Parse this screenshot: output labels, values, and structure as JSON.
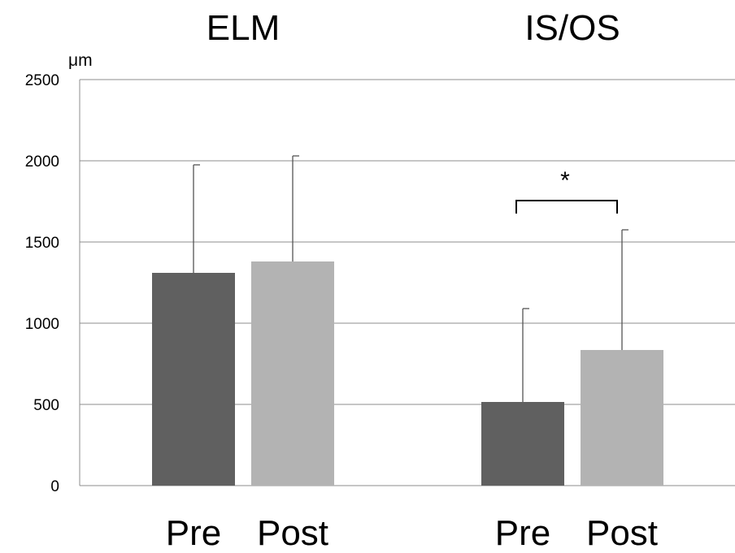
{
  "chart_data": {
    "type": "bar",
    "yunit": "μm",
    "ylim": [
      0,
      2500
    ],
    "yticks": [
      0,
      500,
      1000,
      1500,
      2000,
      2500
    ],
    "grid": true,
    "groups": [
      {
        "title": "ELM",
        "bars": [
          {
            "label": "Pre",
            "value": 1310,
            "error": 665,
            "color": "#606060"
          },
          {
            "label": "Post",
            "value": 1380,
            "error": 650,
            "color": "#b3b3b3"
          }
        ]
      },
      {
        "title": "IS/OS",
        "bars": [
          {
            "label": "Pre",
            "value": 515,
            "error": 575,
            "color": "#606060"
          },
          {
            "label": "Post",
            "value": 835,
            "error": 740,
            "color": "#b3b3b3"
          }
        ],
        "significance": "*"
      }
    ]
  }
}
